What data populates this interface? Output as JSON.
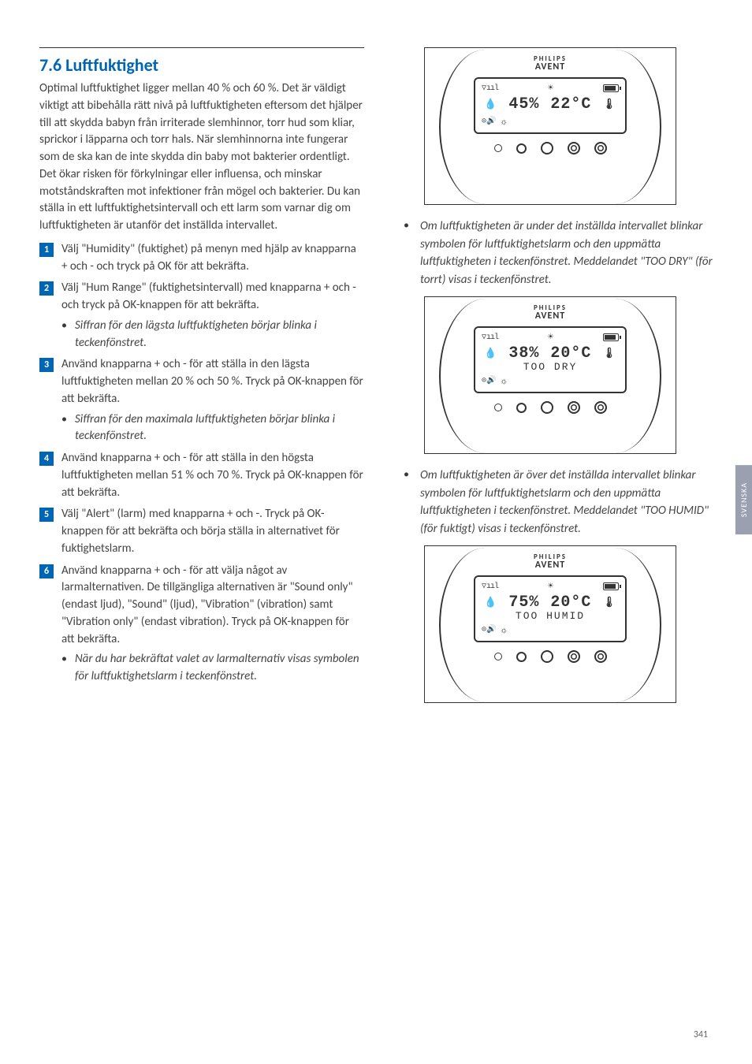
{
  "section": {
    "number": "7.6",
    "title": "Luftfuktighet",
    "intro": "Optimal luftfuktighet ligger mellan 40 % och 60 %. Det är väldigt viktigt att bibehålla rätt nivå på luftfuktigheten eftersom det hjälper till att skydda babyn från irriterade slemhinnor, torr hud som kliar, sprickor i läpparna och torr hals. När slemhinnorna inte fungerar som de ska kan de inte skydda din baby mot bakterier ordentligt. Det ökar risken för förkylningar eller influensa, och minskar motståndskraften mot infektioner från mögel och bakterier. Du kan ställa in ett luftfuktighetsintervall och ett larm som varnar dig om luftfuktigheten är utanför det inställda intervallet."
  },
  "steps": [
    {
      "n": "1",
      "text": "Välj \"Humidity\" (fuktighet) på menyn med hjälp av knapparna + och - och tryck på OK för att bekräfta."
    },
    {
      "n": "2",
      "text": "Välj \"Hum Range\" (fuktighetsintervall) med knapparna + och - och tryck på OK-knappen för att bekräfta.",
      "sub": "Siffran för den lägsta luftfuktigheten börjar blinka i teckenfönstret."
    },
    {
      "n": "3",
      "text": "Använd knapparna + och - för att ställa in den lägsta luftfuktigheten mellan 20 % och 50 %. Tryck på OK-knappen för att bekräfta.",
      "sub": "Siffran för den maximala luftfuktigheten börjar blinka i teckenfönstret."
    },
    {
      "n": "4",
      "text": "Använd knapparna + och - för att ställa in den högsta luftfuktigheten mellan 51 % och 70 %. Tryck på OK-knappen för att bekräfta."
    },
    {
      "n": "5",
      "text": "Välj \"Alert\" (larm) med knapparna + och -. Tryck på OK-knappen för att bekräfta och börja ställa in alternativet för fuktighetslarm."
    },
    {
      "n": "6",
      "text": "Använd knapparna + och - för att välja något av larmalternativen. De tillgängliga alternativen är \"Sound only\" (endast ljud), \"Sound\" (ljud), \"Vibration\" (vibration) samt \"Vibration only\" (endast vibration). Tryck på OK-knappen för att bekräfta.",
      "sub": "När du har bekräftat valet av larmalternativ visas symbolen för luftfuktighetslarm i teckenfönstret."
    }
  ],
  "right": [
    {
      "type": "figure",
      "humidity": "45%",
      "temp": "22°C",
      "msg": ""
    },
    {
      "type": "bullet",
      "text": "Om luftfuktigheten är under det inställda intervallet blinkar symbolen för luftfuktighetslarm och den uppmätta luftfuktigheten i teckenfönstret. Meddelandet \"TOO DRY\" (för torrt) visas i teckenfönstret."
    },
    {
      "type": "figure",
      "humidity": "38%",
      "temp": "20°C",
      "msg": "TOO DRY"
    },
    {
      "type": "bullet",
      "text": "Om luftfuktigheten är över det inställda intervallet blinkar symbolen för luftfuktighetslarm och den uppmätta luftfuktigheten i teckenfönstret. Meddelandet \"TOO HUMID\" (för fuktigt) visas i teckenfönstret."
    },
    {
      "type": "figure",
      "humidity": "75%",
      "temp": "20°C",
      "msg": "TOO HUMID"
    }
  ],
  "brand": {
    "line1": "PHILIPS",
    "line2": "AVENT"
  },
  "sideTab": "SVENSKA",
  "pageNum": "341"
}
